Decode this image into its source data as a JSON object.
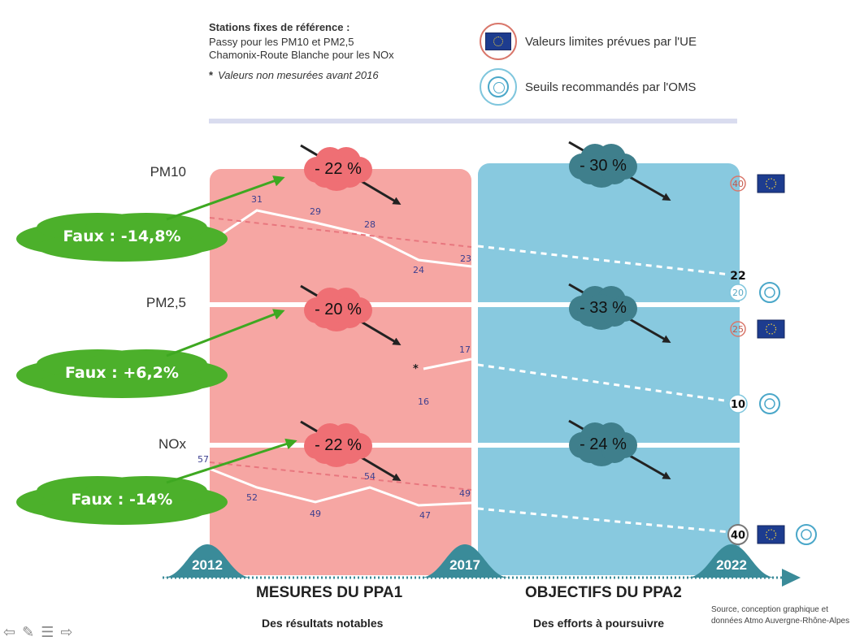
{
  "legend": {
    "stations_title": "Stations fixes de référence :",
    "stations_line1": "Passy pour les PM10 et PM2,5",
    "stations_line2": "Chamonix-Route Blanche pour les NOx",
    "footnote": "Valeurs non mesurées avant 2016",
    "footnote_mark": "*",
    "eu_label": "Valeurs limites prévues par l'UE",
    "oms_label": "Seuils recommandés par l'OMS",
    "eu_icon": "eu-flag-icon",
    "oms_icon": "who-emblem-icon"
  },
  "colors": {
    "ppa1_panel": "#f6a6a3",
    "ppa2_panel": "#88c9df",
    "ppa1_cloud": "#ef6f74",
    "ppa2_cloud": "#3f7f8c",
    "timeline": "#3a8b99",
    "annotation_cloud": "#4cb02b",
    "annotation_arrow": "#3ea821"
  },
  "years": [
    "2012",
    "2017",
    "2022"
  ],
  "footer": {
    "ppa1_title": "MESURES DU PPA1",
    "ppa1_subtitle": "Des résultats notables",
    "ppa2_title": "OBJECTIFS DU PPA2",
    "ppa2_subtitle": "Des efforts à poursuivre",
    "source_line1": "Source, conception graphique et",
    "source_line2": "données Atmo Auvergne-Rhône-Alpes"
  },
  "chart_data": {
    "type": "line",
    "x_categories": [
      "2012",
      "2013",
      "2014",
      "2015",
      "2016",
      "2017",
      "2022"
    ],
    "pollutants": [
      {
        "name": "PM10",
        "measured": {
          "x": [
            "2012",
            "2013",
            "2014",
            "2015",
            "2016",
            "2017"
          ],
          "values": [
            27,
            31,
            29,
            28,
            24,
            23
          ]
        },
        "target_2022": 22,
        "reduction_ppa1": "- 22 %",
        "reduction_ppa2": "- 30 %",
        "eu_limit": 40,
        "who_threshold": 20,
        "annotation": "Faux : -14,8%"
      },
      {
        "name": "PM2,5",
        "measured": {
          "x": [
            "2016",
            "2017"
          ],
          "values": [
            16,
            17
          ]
        },
        "target_2022": 10,
        "reduction_ppa1": "- 20 %",
        "reduction_ppa2": "- 33 %",
        "eu_limit": 25,
        "who_threshold": 10,
        "annotation": "Faux : +6,2%"
      },
      {
        "name": "NOx",
        "measured": {
          "x": [
            "2012",
            "2013",
            "2014",
            "2015",
            "2016",
            "2017"
          ],
          "values": [
            57,
            52,
            49,
            54,
            47,
            49
          ]
        },
        "target_2022": 40,
        "reduction_ppa1": "- 22 %",
        "reduction_ppa2": "- 24 %",
        "eu_limit": 40,
        "who_threshold": 40,
        "annotation": "Faux : -14%"
      }
    ]
  }
}
